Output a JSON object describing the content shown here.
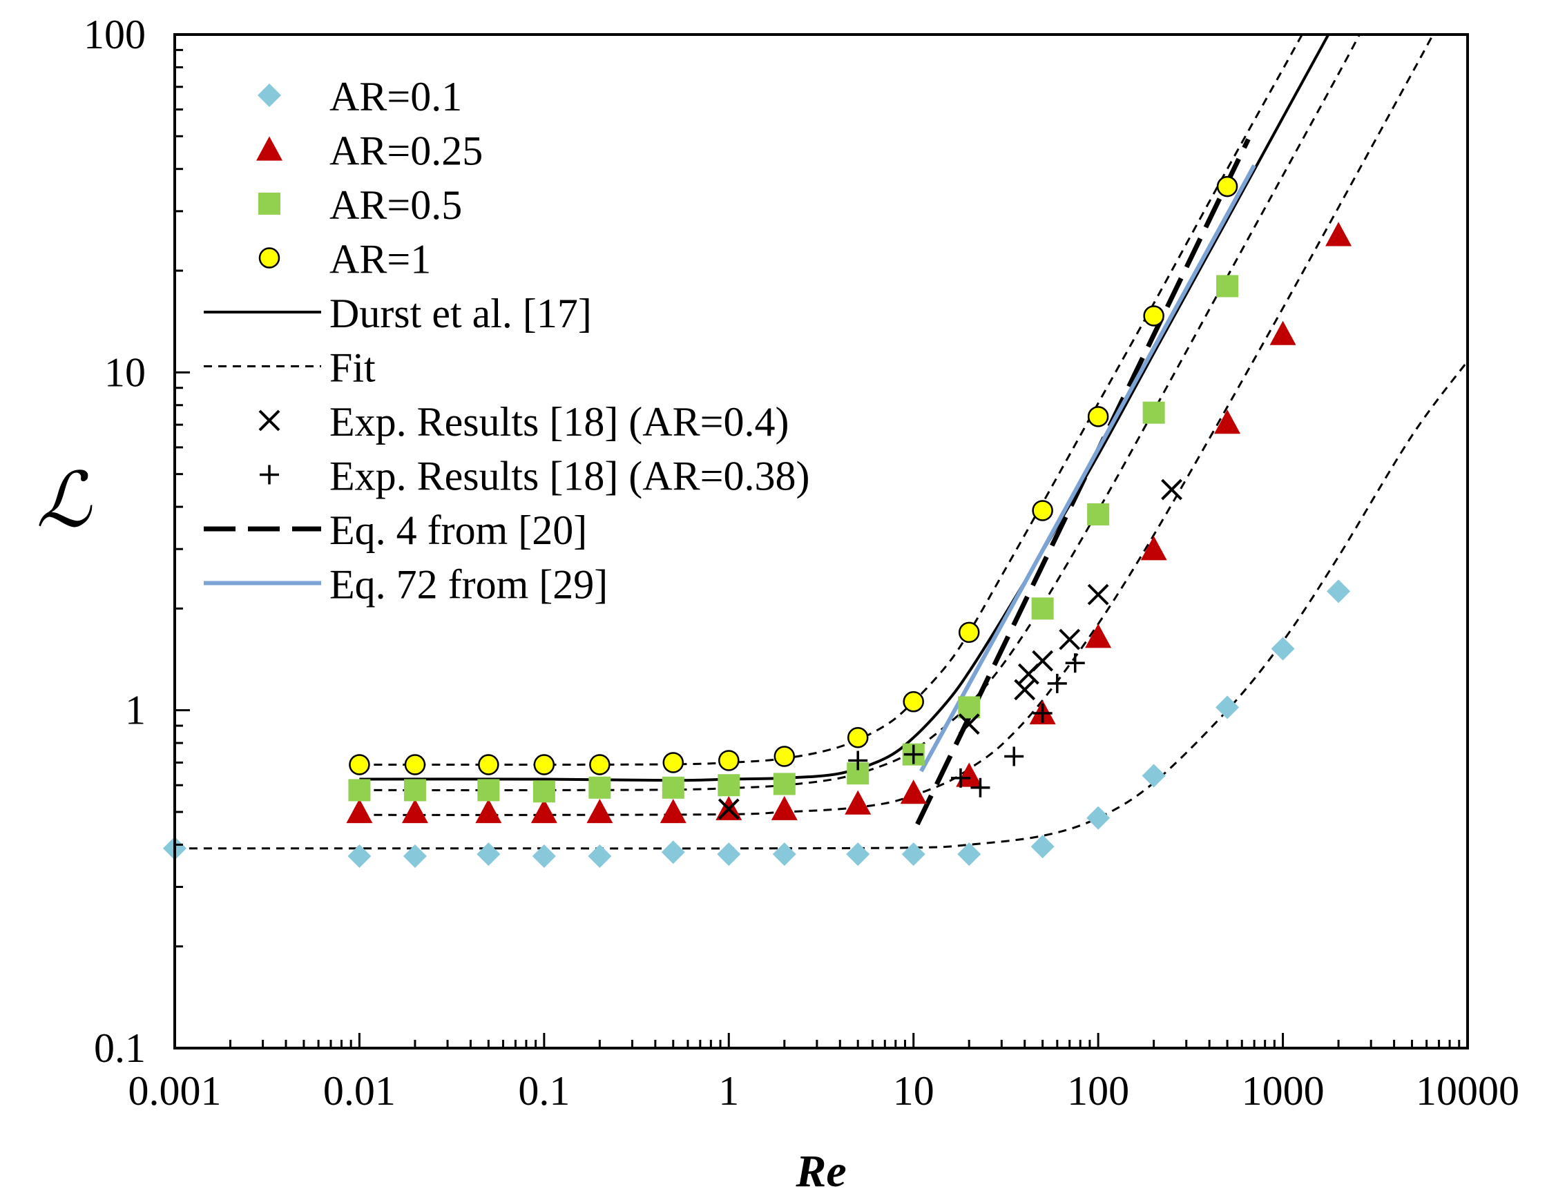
{
  "chart_data": {
    "type": "scatter",
    "title": "",
    "xlabel": "Re",
    "ylabel": "ℒ",
    "xscale": "log",
    "yscale": "log",
    "xlim": [
      0.001,
      10000
    ],
    "ylim": [
      0.1,
      100
    ],
    "x_ticks": [
      "0.001",
      "0.01",
      "0.1",
      "1",
      "10",
      "100",
      "1000",
      "10000"
    ],
    "y_ticks": [
      "0.1",
      "1",
      "10",
      "100"
    ],
    "legend_position": "top-left",
    "series": [
      {
        "name": "AR=0.1",
        "kind": "marker",
        "marker": "diamond",
        "color": "#87C8DA",
        "points": [
          [
            0.001,
            0.39
          ],
          [
            0.01,
            0.37
          ],
          [
            0.02,
            0.37
          ],
          [
            0.05,
            0.375
          ],
          [
            0.1,
            0.37
          ],
          [
            0.2,
            0.37
          ],
          [
            0.5,
            0.38
          ],
          [
            1,
            0.375
          ],
          [
            2,
            0.375
          ],
          [
            5,
            0.375
          ],
          [
            10,
            0.375
          ],
          [
            20,
            0.375
          ],
          [
            50,
            0.395
          ],
          [
            100,
            0.48
          ],
          [
            200,
            0.64
          ],
          [
            500,
            1.02
          ],
          [
            1000,
            1.52
          ],
          [
            2000,
            2.25
          ]
        ]
      },
      {
        "name": "AR=0.25",
        "kind": "marker",
        "marker": "triangle",
        "color": "#C00000",
        "points": [
          [
            0.01,
            0.5
          ],
          [
            0.02,
            0.5
          ],
          [
            0.05,
            0.5
          ],
          [
            0.1,
            0.5
          ],
          [
            0.2,
            0.5
          ],
          [
            0.5,
            0.5
          ],
          [
            1,
            0.51
          ],
          [
            2,
            0.51
          ],
          [
            5,
            0.53
          ],
          [
            10,
            0.57
          ],
          [
            20,
            0.64
          ],
          [
            50,
            0.98
          ],
          [
            100,
            1.65
          ],
          [
            200,
            3.0
          ],
          [
            500,
            7.1
          ],
          [
            1000,
            13.0
          ],
          [
            2000,
            25.5
          ]
        ]
      },
      {
        "name": "AR=0.5",
        "kind": "marker",
        "marker": "square",
        "color": "#92D050",
        "points": [
          [
            0.01,
            0.58
          ],
          [
            0.02,
            0.58
          ],
          [
            0.05,
            0.58
          ],
          [
            0.1,
            0.575
          ],
          [
            0.2,
            0.59
          ],
          [
            0.5,
            0.59
          ],
          [
            1,
            0.6
          ],
          [
            2,
            0.605
          ],
          [
            5,
            0.65
          ],
          [
            10,
            0.74
          ],
          [
            20,
            1.02
          ],
          [
            50,
            2.0
          ],
          [
            100,
            3.8
          ],
          [
            200,
            7.6
          ],
          [
            500,
            18.0
          ]
        ]
      },
      {
        "name": "AR=1",
        "kind": "marker",
        "marker": "circle",
        "color": "#FFFF00",
        "points": [
          [
            0.01,
            0.69
          ],
          [
            0.02,
            0.69
          ],
          [
            0.05,
            0.69
          ],
          [
            0.1,
            0.69
          ],
          [
            0.2,
            0.69
          ],
          [
            0.5,
            0.7
          ],
          [
            1,
            0.71
          ],
          [
            2,
            0.73
          ],
          [
            5,
            0.83
          ],
          [
            10,
            1.06
          ],
          [
            20,
            1.7
          ],
          [
            50,
            3.9
          ],
          [
            100,
            7.4
          ],
          [
            200,
            14.7
          ],
          [
            500,
            35.5
          ]
        ]
      },
      {
        "name": "Durst et al. [17]",
        "kind": "line",
        "style": "solid",
        "color": "#000000",
        "points": [
          [
            0.01,
            0.625
          ],
          [
            0.1,
            0.625
          ],
          [
            0.5,
            0.62
          ],
          [
            1,
            0.625
          ],
          [
            2,
            0.63
          ],
          [
            4,
            0.65
          ],
          [
            7,
            0.72
          ],
          [
            10,
            0.83
          ],
          [
            15,
            1.05
          ],
          [
            20,
            1.3
          ],
          [
            30,
            1.85
          ],
          [
            50,
            2.95
          ],
          [
            100,
            5.7
          ],
          [
            200,
            11.4
          ],
          [
            500,
            28.4
          ],
          [
            1000,
            56.8
          ],
          [
            1800,
            102
          ]
        ]
      },
      {
        "name": "Fit",
        "kind": "line",
        "style": "dashed",
        "color": "#000000",
        "curves": [
          [
            [
              0.01,
              0.69
            ],
            [
              0.1,
              0.69
            ],
            [
              0.5,
              0.692
            ],
            [
              1,
              0.7
            ],
            [
              2,
              0.72
            ],
            [
              4,
              0.78
            ],
            [
              7,
              0.9
            ],
            [
              10,
              1.06
            ],
            [
              15,
              1.35
            ],
            [
              20,
              1.7
            ],
            [
              30,
              2.5
            ],
            [
              50,
              4.1
            ],
            [
              100,
              8.1
            ],
            [
              200,
              16.0
            ],
            [
              500,
              40
            ],
            [
              1000,
              79
            ],
            [
              1400,
              110
            ]
          ],
          [
            [
              0.01,
              0.58
            ],
            [
              0.1,
              0.58
            ],
            [
              0.5,
              0.582
            ],
            [
              1,
              0.588
            ],
            [
              2,
              0.6
            ],
            [
              4,
              0.63
            ],
            [
              7,
              0.69
            ],
            [
              10,
              0.76
            ],
            [
              15,
              0.9
            ],
            [
              20,
              1.04
            ],
            [
              30,
              1.35
            ],
            [
              50,
              2.05
            ],
            [
              100,
              3.9
            ],
            [
              200,
              7.7
            ],
            [
              500,
              19.2
            ],
            [
              1000,
              38.3
            ],
            [
              2000,
              76.5
            ],
            [
              2600,
              100
            ]
          ]
        ]
      },
      {
        "name": "Fit",
        "kind": "line",
        "style": "dashed",
        "color": "#000000",
        "legend": false,
        "curves": [
          [
            [
              0.01,
              0.49
            ],
            [
              0.1,
              0.49
            ],
            [
              1,
              0.492
            ],
            [
              2,
              0.5
            ],
            [
              4,
              0.51
            ],
            [
              7,
              0.53
            ],
            [
              10,
              0.56
            ],
            [
              15,
              0.61
            ],
            [
              20,
              0.67
            ],
            [
              30,
              0.79
            ],
            [
              50,
              1.07
            ],
            [
              100,
              1.8
            ],
            [
              200,
              3.3
            ],
            [
              500,
              7.9
            ],
            [
              1000,
              15.5
            ],
            [
              2000,
              30.8
            ],
            [
              5000,
              76.8
            ],
            [
              6500,
              100
            ]
          ],
          [
            [
              0.001,
              0.39
            ],
            [
              0.1,
              0.39
            ],
            [
              1,
              0.39
            ],
            [
              10,
              0.392
            ],
            [
              20,
              0.4
            ],
            [
              50,
              0.425
            ],
            [
              100,
              0.48
            ],
            [
              200,
              0.61
            ],
            [
              500,
              1.0
            ],
            [
              1000,
              1.6
            ],
            [
              2000,
              2.85
            ],
            [
              5000,
              6.5
            ],
            [
              10000,
              10.8
            ]
          ]
        ]
      },
      {
        "name": "Exp. Results [18] (AR=0.4)",
        "kind": "marker",
        "marker": "x",
        "color": "#000000",
        "points": [
          [
            1,
            0.51
          ],
          [
            20,
            0.91
          ],
          [
            40,
            1.15
          ],
          [
            42,
            1.28
          ],
          [
            50,
            1.4
          ],
          [
            70,
            1.62
          ],
          [
            100,
            2.2
          ],
          [
            250,
            4.5
          ]
        ]
      },
      {
        "name": "Exp. Results [18] (AR=0.38)",
        "kind": "marker",
        "marker": "plus",
        "color": "#000000",
        "points": [
          [
            5,
            0.71
          ],
          [
            10,
            0.74
          ],
          [
            18,
            0.63
          ],
          [
            23,
            0.59
          ],
          [
            35,
            0.73
          ],
          [
            50,
            0.98
          ],
          [
            60,
            1.2
          ],
          [
            75,
            1.38
          ]
        ]
      },
      {
        "name": "Eq. 4 from [20]",
        "kind": "line",
        "style": "longdash",
        "color": "#000000",
        "points": [
          [
            10.5,
            0.46
          ],
          [
            650,
            49
          ]
        ]
      },
      {
        "name": "Eq. 72 from [29]",
        "kind": "line",
        "style": "solid",
        "color": "#7BA3D4",
        "points": [
          [
            11,
            0.66
          ],
          [
            700,
            41
          ]
        ]
      }
    ]
  }
}
